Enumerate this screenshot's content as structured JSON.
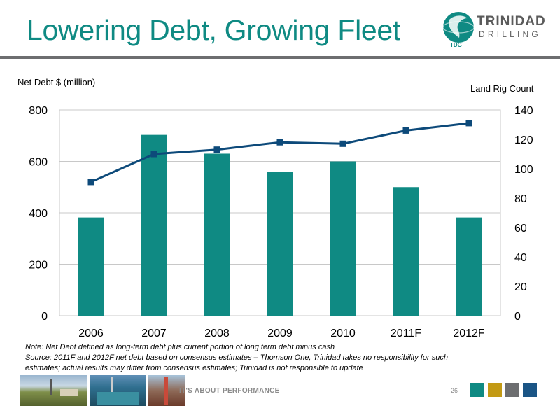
{
  "title": "Lowering Debt, Growing Fleet",
  "logo": {
    "name": "TRINIDAD",
    "sub": "DRILLING",
    "abbr": "TDG"
  },
  "colors": {
    "teal": "#0f8a83",
    "navy": "#0d4a7a",
    "gold": "#c39a14",
    "gray": "#6d6e70",
    "blue": "#1a5585"
  },
  "chart_data": {
    "type": "bar+line",
    "categories": [
      "2006",
      "2007",
      "2008",
      "2009",
      "2010",
      "2011F",
      "2012F"
    ],
    "series": [
      {
        "name": "Net Debt $ (million)",
        "type": "bar",
        "axis": "left",
        "values": [
          382,
          703,
          630,
          558,
          600,
          500,
          382
        ]
      },
      {
        "name": "Land Rig Count",
        "type": "line",
        "axis": "right",
        "values": [
          91,
          110,
          113,
          118,
          117,
          126,
          131
        ]
      }
    ],
    "ylabel_left": "Net Debt $ (million)",
    "ylabel_right": "Land Rig Count",
    "ylim_left": [
      0,
      800
    ],
    "ylim_right": [
      0,
      140
    ],
    "yticks_left": [
      "0",
      "200",
      "400",
      "600",
      "800"
    ],
    "yticks_right": [
      "0",
      "20",
      "40",
      "60",
      "80",
      "100",
      "120",
      "140"
    ],
    "grid": true
  },
  "notes": [
    "Note: Net Debt defined as long-term debt plus current portion of long term debt minus cash",
    "Source: 2011F and 2012F net debt based on consensus estimates – Thomson One, Trinidad takes no responsibility for such",
    "estimates; actual results may differ from consensus estimates; Trinidad is not responsible to update"
  ],
  "footer": {
    "tagline": "IT'S ABOUT PERFORMANCE",
    "page": "26"
  }
}
